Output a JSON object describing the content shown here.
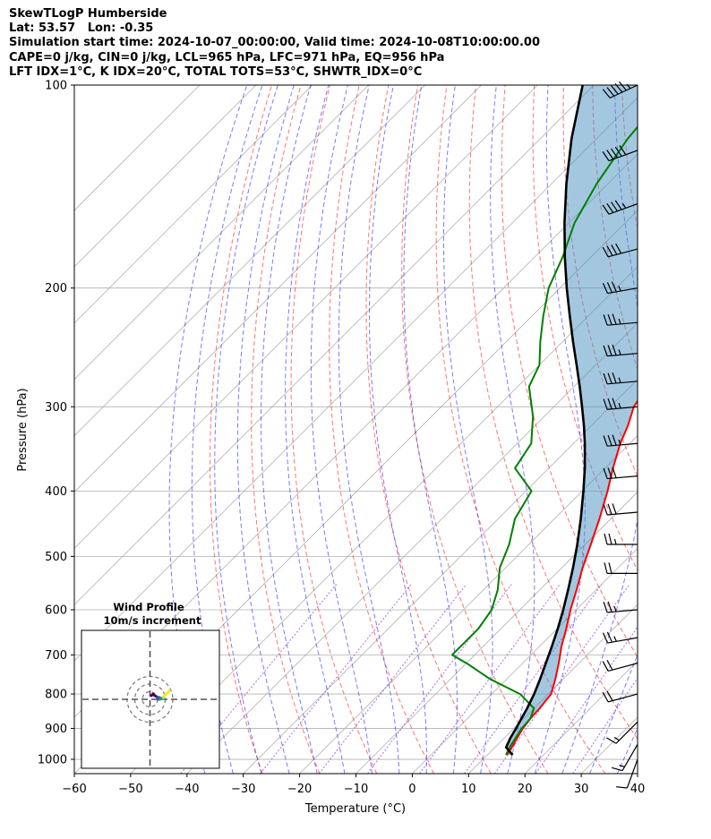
{
  "header": {
    "line1": "SkewTLogP Humberside",
    "line2": "Lat: 53.57   Lon: -0.35",
    "line3": "Simulation start time: 2024-10-07_00:00:00, Valid time: 2024-10-08T10:00:00.00",
    "line4": "CAPE=0 j/kg, CIN=0 j/kg, LCL=965 hPa, LFC=971 hPa, EQ=956 hPa",
    "line5": "LFT IDX=1°C, K IDX=20°C, TOTAL TOTS=53°C, SHWTR_IDX=0°C"
  },
  "chart_data": {
    "type": "line",
    "subtype": "skew-t log-p",
    "xlabel": "Temperature (°C)",
    "ylabel": "Pressure (hPa)",
    "xlim": [
      -60,
      40
    ],
    "ylim": [
      1050,
      100
    ],
    "y_scale": "log",
    "grid": true,
    "x_ticks": [
      "−60",
      "−50",
      "−40",
      "−30",
      "−20",
      "−10",
      "0",
      "10",
      "20",
      "30",
      "40"
    ],
    "y_ticks": [
      "100",
      "200",
      "300",
      "400",
      "500",
      "600",
      "700",
      "800",
      "900",
      "1000"
    ],
    "series": [
      {
        "color": "#ff0000",
        "p": [
          985,
          960,
          930,
          900,
          870,
          840,
          800,
          760,
          720,
          680,
          640,
          600,
          560,
          520,
          480,
          440,
          400,
          370,
          340,
          320,
          300,
          280,
          260,
          240,
          220,
          200,
          180,
          160,
          140,
          120,
          100
        ],
        "t": [
          13.5,
          13.0,
          12.3,
          11.6,
          11.2,
          11.0,
          10.5,
          8.6,
          6.4,
          3.9,
          1.6,
          -1.0,
          -3.5,
          -6.3,
          -9.0,
          -12.0,
          -15.5,
          -18.6,
          -21.7,
          -23.5,
          -25.8,
          -27.0,
          -26.5,
          -26.0,
          -25.5,
          -25.5,
          -27.0,
          -28.5,
          -30.5,
          -32.5,
          -35.5
        ]
      },
      {
        "color": "#008000",
        "p": [
          985,
          960,
          930,
          900,
          870,
          840,
          800,
          760,
          720,
          700,
          680,
          640,
          600,
          560,
          520,
          480,
          440,
          400,
          370,
          340,
          310,
          280,
          260,
          240,
          220,
          200,
          180,
          160,
          140,
          120,
          100
        ],
        "t": [
          13.3,
          12.6,
          12.0,
          11.4,
          11.2,
          10.0,
          5.0,
          -3.0,
          -10.0,
          -14.0,
          -14.0,
          -14.0,
          -15.0,
          -17.5,
          -21.0,
          -23.5,
          -27.0,
          -29.0,
          -36.0,
          -37.5,
          -42.0,
          -48.0,
          -50.0,
          -54.0,
          -58.0,
          -62.0,
          -65.0,
          -69.0,
          -72.0,
          -74.5,
          -76.0
        ]
      },
      {
        "color": "#000000",
        "p": [
          985,
          960,
          930,
          900,
          870,
          840,
          800,
          760,
          720,
          680,
          640,
          600,
          560,
          520,
          480,
          440,
          400,
          370,
          340,
          320,
          300,
          280,
          260,
          240,
          220,
          200,
          180,
          160,
          140,
          120,
          100
        ],
        "t": [
          14.5,
          12.0,
          11.1,
          10.4,
          9.6,
          8.8,
          7.5,
          5.9,
          4.1,
          2.2,
          0.1,
          -2.3,
          -5.0,
          -8.0,
          -11.4,
          -15.3,
          -19.8,
          -23.6,
          -28.0,
          -31.3,
          -35.0,
          -39.0,
          -43.4,
          -48.2,
          -53.3,
          -58.8,
          -64.6,
          -70.8,
          -77.4,
          -84.5,
          -92.0
        ]
      }
    ],
    "wind_barbs": [
      {
        "p": 100,
        "dir": 245,
        "spd_kt": 55
      },
      {
        "p": 125,
        "dir": 250,
        "spd_kt": 50
      },
      {
        "p": 150,
        "dir": 250,
        "spd_kt": 45
      },
      {
        "p": 175,
        "dir": 255,
        "spd_kt": 40
      },
      {
        "p": 200,
        "dir": 260,
        "spd_kt": 35
      },
      {
        "p": 225,
        "dir": 265,
        "spd_kt": 35
      },
      {
        "p": 250,
        "dir": 265,
        "spd_kt": 35
      },
      {
        "p": 275,
        "dir": 265,
        "spd_kt": 35
      },
      {
        "p": 300,
        "dir": 265,
        "spd_kt": 35
      },
      {
        "p": 340,
        "dir": 265,
        "spd_kt": 35
      },
      {
        "p": 380,
        "dir": 265,
        "spd_kt": 30
      },
      {
        "p": 430,
        "dir": 265,
        "spd_kt": 30
      },
      {
        "p": 480,
        "dir": 270,
        "spd_kt": 25
      },
      {
        "p": 530,
        "dir": 270,
        "spd_kt": 20
      },
      {
        "p": 600,
        "dir": 265,
        "spd_kt": 25
      },
      {
        "p": 660,
        "dir": 260,
        "spd_kt": 25
      },
      {
        "p": 720,
        "dir": 255,
        "spd_kt": 20
      },
      {
        "p": 800,
        "dir": 255,
        "spd_kt": 20
      },
      {
        "p": 880,
        "dir": 225,
        "spd_kt": 15
      },
      {
        "p": 950,
        "dir": 210,
        "spd_kt": 15
      },
      {
        "p": 1000,
        "dir": 200,
        "spd_kt": 10
      }
    ],
    "hodograph": {
      "title_line1": "Wind Profile",
      "title_line2": "10m/s increment",
      "rings": [
        10,
        20,
        30
      ]
    }
  }
}
